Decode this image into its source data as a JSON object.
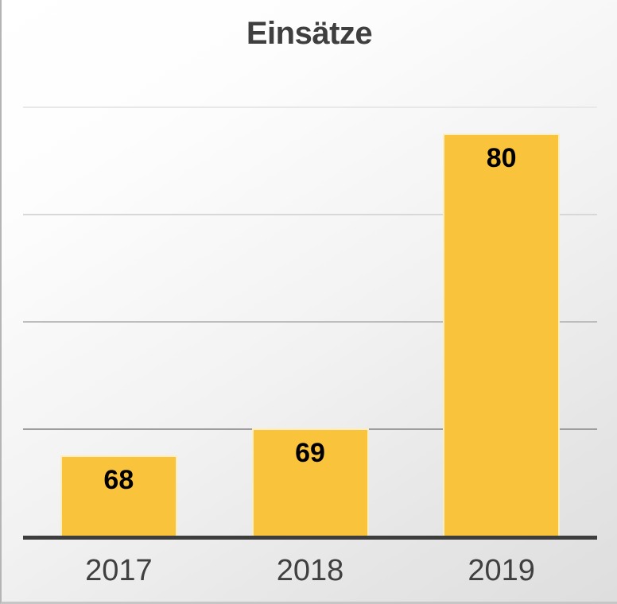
{
  "chart_data": {
    "type": "bar",
    "title": "Einsätze",
    "categories": [
      "2017",
      "2018",
      "2019"
    ],
    "values": [
      68,
      69,
      80
    ],
    "data_labels": [
      "68",
      "69",
      "80"
    ],
    "xlabel": "",
    "ylabel": "",
    "ylim": [
      65,
      81
    ],
    "gridline_values": [
      69,
      73,
      77,
      81
    ],
    "grid": "horizontal, unlabeled value axis",
    "legend": "none",
    "colors": {
      "bar_fill": "#F9C33C",
      "bar_edge_highlight": "#FCEDC2",
      "axis_line": "#3D3D3D",
      "title_text": "#3F3F3F",
      "tick_label_text": "#404040",
      "data_label_text": "#000000"
    }
  }
}
